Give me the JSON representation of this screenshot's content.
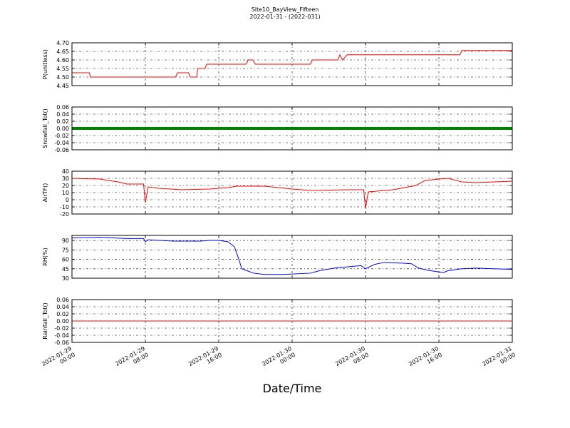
{
  "chart_data": [
    {
      "type": "line",
      "title": "Site10_BayView_Fifteen",
      "subtitle": "2022-01-31 - (2022-031)",
      "ylabel": "P(unitless)",
      "ylim": [
        4.45,
        4.7
      ],
      "yticks": [
        4.45,
        {
          "value": 4.5,
          "label": "4.50"
        },
        4.55,
        {
          "value": 4.6,
          "label": "4.60"
        },
        4.65,
        {
          "value": 4.7,
          "label": "4.70"
        }
      ],
      "grid": true,
      "color": "#ff0000",
      "linewidth": 1,
      "x": [
        "2022-01-29 00:00",
        "2022-01-29 01:54",
        "2022-01-29 02:00",
        "2022-01-29 11:18",
        "2022-01-29 11:30",
        "2022-01-29 12:42",
        "2022-01-29 12:54",
        "2022-01-29 13:36",
        "2022-01-29 13:42",
        "2022-01-29 14:30",
        "2022-01-29 14:42",
        "2022-01-29 19:00",
        "2022-01-29 19:12",
        "2022-01-29 19:42",
        "2022-01-29 20:00",
        "2022-01-30 02:00",
        "2022-01-30 02:12",
        "2022-01-30 05:00",
        "2022-01-30 05:12",
        "2022-01-30 05:30",
        "2022-01-30 06:00",
        "2022-01-30 18:18",
        "2022-01-30 18:30",
        "2022-01-31 00:00"
      ],
      "values": [
        4.525,
        4.525,
        4.5,
        4.5,
        4.525,
        4.525,
        4.5,
        4.5,
        4.55,
        4.55,
        4.575,
        4.575,
        4.6,
        4.6,
        4.575,
        4.575,
        4.6,
        4.6,
        4.63,
        4.6,
        4.63,
        4.63,
        4.655,
        4.655
      ]
    },
    {
      "type": "line",
      "ylabel": "Snowfall_Tot()",
      "ylim": [
        -0.06,
        0.06
      ],
      "yticks": [
        -0.06,
        -0.04,
        -0.02,
        {
          "value": 0,
          "label": "0.00"
        },
        0.02,
        0.04,
        0.06
      ],
      "grid": true,
      "color": "#008000",
      "linewidth": 4,
      "x": [
        "2022-01-29 00:00",
        "2022-01-31 00:00"
      ],
      "values": [
        0,
        0
      ]
    },
    {
      "type": "line",
      "ylabel": "AirTF()",
      "ylim": [
        -20,
        40
      ],
      "yticks": [
        -20,
        -10,
        0,
        10,
        20,
        30,
        40
      ],
      "grid": true,
      "color": "#ff0000",
      "linewidth": 1,
      "x": [
        "2022-01-29 00:00",
        "2022-01-29 03:00",
        "2022-01-29 05:00",
        "2022-01-29 06:00",
        "2022-01-29 07:48",
        "2022-01-29 08:00",
        "2022-01-29 08:18",
        "2022-01-29 09:30",
        "2022-01-29 12:00",
        "2022-01-29 15:00",
        "2022-01-29 17:00",
        "2022-01-29 18:00",
        "2022-01-29 21:00",
        "2022-01-30 00:00",
        "2022-01-30 02:00",
        "2022-01-30 06:00",
        "2022-01-30 07:48",
        "2022-01-30 08:00",
        "2022-01-30 08:18",
        "2022-01-30 11:00",
        "2022-01-30 13:30",
        "2022-01-30 14:30",
        "2022-01-30 16:00",
        "2022-01-30 17:00",
        "2022-01-30 18:30",
        "2022-01-30 20:00",
        "2022-01-30 22:00",
        "2022-01-31 00:00"
      ],
      "values": [
        30,
        29,
        25,
        22,
        22,
        -4,
        18,
        16,
        14,
        15,
        17,
        19,
        19,
        15,
        13,
        14,
        14,
        -12,
        11,
        14,
        20,
        27,
        29,
        30,
        25,
        24,
        25,
        26
      ]
    },
    {
      "type": "line",
      "ylabel": "RH(%)",
      "ylim": [
        30,
        98
      ],
      "yticks": [
        30,
        45,
        60,
        75,
        90
      ],
      "grid": true,
      "color": "#0000ff",
      "linewidth": 1,
      "x": [
        "2022-01-29 00:00",
        "2022-01-29 03:00",
        "2022-01-29 06:00",
        "2022-01-29 07:48",
        "2022-01-29 08:00",
        "2022-01-29 08:18",
        "2022-01-29 11:00",
        "2022-01-29 14:00",
        "2022-01-29 15:00",
        "2022-01-29 16:00",
        "2022-01-29 17:00",
        "2022-01-29 17:42",
        "2022-01-29 18:12",
        "2022-01-29 18:30",
        "2022-01-29 19:48",
        "2022-01-29 21:00",
        "2022-01-29 23:00",
        "2022-01-30 02:00",
        "2022-01-30 03:00",
        "2022-01-30 05:00",
        "2022-01-30 06:00",
        "2022-01-30 07:30",
        "2022-01-30 08:00",
        "2022-01-30 09:00",
        "2022-01-30 10:00",
        "2022-01-30 12:00",
        "2022-01-30 13:00",
        "2022-01-30 13:48",
        "2022-01-30 15:00",
        "2022-01-30 16:00",
        "2022-01-30 16:30",
        "2022-01-30 17:00",
        "2022-01-30 18:30",
        "2022-01-30 20:00",
        "2022-01-30 22:00",
        "2022-01-31 00:00"
      ],
      "values": [
        94,
        95,
        93,
        93,
        88,
        91,
        89,
        89,
        90,
        90,
        88,
        80,
        60,
        45,
        38,
        36,
        36,
        38,
        42,
        47,
        48,
        50,
        45,
        52,
        55,
        54,
        53,
        46,
        42,
        40,
        39,
        42,
        45,
        46,
        45,
        44
      ]
    },
    {
      "type": "line",
      "ylabel": "Rainfall_Tot()",
      "xlabel": "Date/Time",
      "ylim": [
        -0.06,
        0.06
      ],
      "yticks": [
        -0.06,
        -0.04,
        -0.02,
        {
          "value": 0,
          "label": "0.00"
        },
        0.02,
        0.04,
        0.06
      ],
      "grid": true,
      "color": "#ff0000",
      "linewidth": 1,
      "xlim": [
        "2022-01-29 00:00",
        "2022-01-31 00:00"
      ],
      "xticks": [
        "2022-01-29 00:00",
        "2022-01-29 08:00",
        "2022-01-29 16:00",
        "2022-01-30 00:00",
        "2022-01-30 08:00",
        "2022-01-30 16:00",
        "2022-01-31 00:00"
      ],
      "x": [
        "2022-01-29 00:00",
        "2022-01-31 00:00"
      ],
      "values": [
        0,
        0
      ]
    }
  ]
}
